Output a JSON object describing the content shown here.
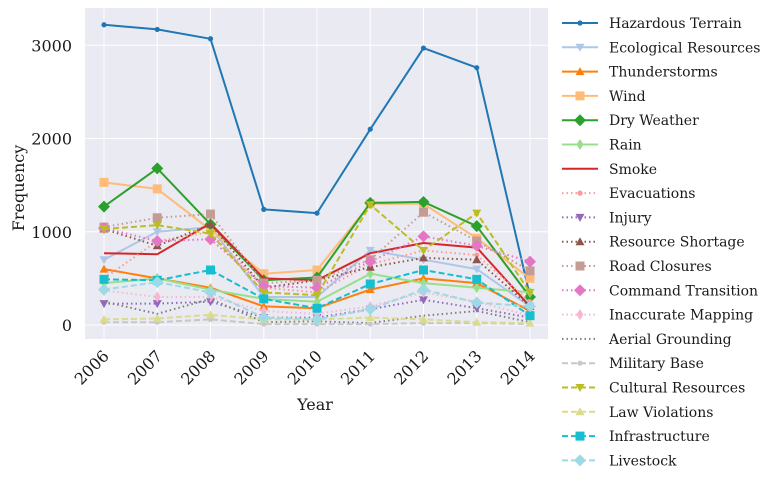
{
  "chart_data": {
    "type": "line",
    "title": "",
    "xlabel": "Year",
    "ylabel": "Frequency",
    "x": [
      "2006",
      "2007",
      "2008",
      "2009",
      "2010",
      "2011",
      "2012",
      "2013",
      "2014"
    ],
    "yticks": [
      0,
      1000,
      2000,
      3000
    ],
    "ylim": [
      -150,
      3400
    ],
    "grid": true,
    "legend_position": "right-outside",
    "series": [
      {
        "name": "Hazardous Terrain",
        "color": "#1f77b4",
        "style": "solid",
        "marker": "circle-small",
        "values": [
          3220,
          3170,
          3070,
          1240,
          1200,
          2100,
          2970,
          2760,
          310
        ]
      },
      {
        "name": "Ecological Resources",
        "color": "#aec7e8",
        "style": "solid",
        "marker": "triangle-down",
        "values": [
          700,
          1000,
          1050,
          300,
          300,
          800,
          700,
          600,
          200
        ]
      },
      {
        "name": "Thunderstorms",
        "color": "#ff7f0e",
        "style": "solid",
        "marker": "triangle-up",
        "values": [
          600,
          500,
          400,
          200,
          180,
          380,
          500,
          450,
          150
        ]
      },
      {
        "name": "Wind",
        "color": "#ffbb78",
        "style": "solid",
        "marker": "square",
        "values": [
          1530,
          1460,
          1020,
          550,
          590,
          1300,
          1300,
          930,
          500
        ]
      },
      {
        "name": "Dry Weather",
        "color": "#2ca02c",
        "style": "solid",
        "marker": "diamond",
        "values": [
          1270,
          1680,
          1080,
          480,
          510,
          1310,
          1320,
          1060,
          300
        ]
      },
      {
        "name": "Rain",
        "color": "#98df8a",
        "style": "solid",
        "marker": "thin-diamond",
        "values": [
          450,
          500,
          380,
          280,
          250,
          550,
          450,
          400,
          350
        ]
      },
      {
        "name": "Smoke",
        "color": "#d62728",
        "style": "solid",
        "marker": "none",
        "values": [
          770,
          760,
          1090,
          500,
          480,
          770,
          880,
          830,
          200
        ]
      },
      {
        "name": "Evacuations",
        "color": "#ff9896",
        "style": "dotted",
        "marker": "circle-small",
        "values": [
          500,
          900,
          1000,
          400,
          350,
          650,
          800,
          750,
          250
        ]
      },
      {
        "name": "Injury",
        "color": "#9467bd",
        "style": "dotted",
        "marker": "triangle-down",
        "values": [
          230,
          230,
          250,
          80,
          80,
          170,
          270,
          180,
          80
        ]
      },
      {
        "name": "Resource Shortage",
        "color": "#8c564b",
        "style": "dotted",
        "marker": "triangle-up",
        "values": [
          1030,
          850,
          1080,
          400,
          480,
          620,
          720,
          700,
          200
        ]
      },
      {
        "name": "Road Closures",
        "color": "#c49c94",
        "style": "dotted",
        "marker": "square",
        "values": [
          1050,
          1150,
          1190,
          450,
          480,
          700,
          1210,
          900,
          580
        ]
      },
      {
        "name": "Command Transition",
        "color": "#e377c2",
        "style": "dotted",
        "marker": "diamond",
        "values": [
          1040,
          900,
          920,
          420,
          400,
          680,
          950,
          850,
          680
        ]
      },
      {
        "name": "Inaccurate Mapping",
        "color": "#f7b6d2",
        "style": "dotted",
        "marker": "thin-diamond",
        "values": [
          370,
          300,
          300,
          150,
          120,
          200,
          350,
          250,
          100
        ]
      },
      {
        "name": "Aerial Grounding",
        "color": "#7f7f7f",
        "style": "dotted",
        "marker": "none",
        "values": [
          250,
          120,
          280,
          30,
          40,
          20,
          100,
          150,
          30
        ]
      },
      {
        "name": "Military Base",
        "color": "#c7c7c7",
        "style": "dashed",
        "marker": "circle-small",
        "values": [
          30,
          30,
          60,
          10,
          10,
          10,
          20,
          20,
          10
        ]
      },
      {
        "name": "Cultural Resources",
        "color": "#bcbd22",
        "style": "dashed",
        "marker": "triangle-down",
        "values": [
          1030,
          1070,
          980,
          350,
          320,
          1290,
          800,
          1200,
          350
        ]
      },
      {
        "name": "Law Violations",
        "color": "#dbdb8d",
        "style": "dashed",
        "marker": "triangle-up",
        "values": [
          60,
          70,
          110,
          60,
          60,
          80,
          60,
          30,
          20
        ]
      },
      {
        "name": "Infrastructure",
        "color": "#17becf",
        "style": "dashed",
        "marker": "square",
        "values": [
          490,
          480,
          590,
          280,
          180,
          440,
          590,
          490,
          100
        ]
      },
      {
        "name": "Livestock",
        "color": "#9edae5",
        "style": "dashed",
        "marker": "diamond",
        "values": [
          380,
          460,
          350,
          80,
          60,
          170,
          380,
          240,
          200
        ]
      }
    ]
  }
}
